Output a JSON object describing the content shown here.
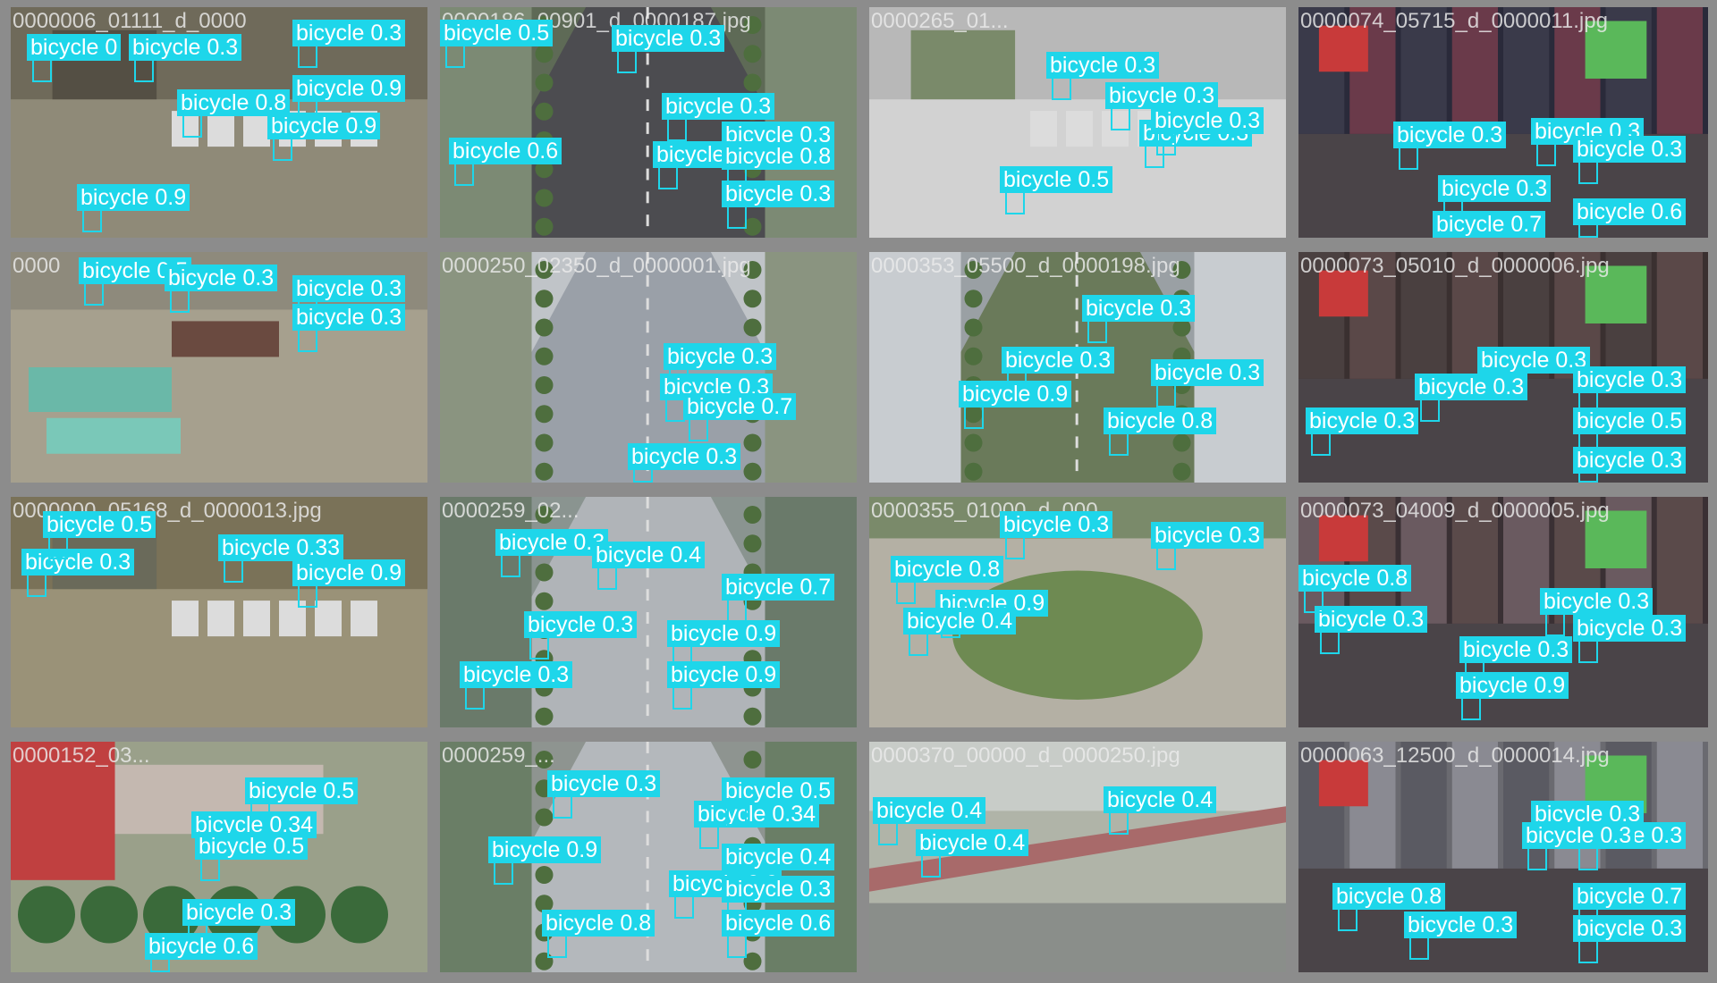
{
  "label_color": "#1ed6ea",
  "tiles": [
    {
      "filename": "0000006_01111_d_0000",
      "scene": "construction",
      "labels": [
        [
          "bicycle 0",
          18,
          30
        ],
        [
          "bicycle 0.3",
          132,
          30
        ],
        [
          "bicycle 0.3",
          320,
          14
        ],
        [
          "bicycle 0.8",
          186,
          92
        ],
        [
          "bicycle 0.9",
          381,
          76
        ],
        [
          "bicycle 0.9",
          287,
          118
        ],
        [
          "bicycle 0.9",
          74,
          198
        ]
      ]
    },
    {
      "filename": "0000186_00901_d_0000187.jpg",
      "scene": "road",
      "labels": [
        [
          "bicycle 0.5",
          0,
          14
        ],
        [
          "bicycle 0.3",
          192,
          20
        ],
        [
          "bicycle 0.3",
          248,
          96
        ],
        [
          "bicycle 0.3",
          324,
          128
        ],
        [
          "bicycle 0.6",
          10,
          146
        ],
        [
          "bicycle 0.7",
          238,
          150
        ],
        [
          "bicycle 0.8",
          390,
          152
        ],
        [
          "bicycle 0.3",
          396,
          194
        ]
      ]
    },
    {
      "filename": "0000265_01...",
      "scene": "city",
      "labels": [
        [
          "bicycle 0.3",
          198,
          50
        ],
        [
          "bicycle 0.3",
          264,
          84
        ],
        [
          "bicycle 0.3",
          302,
          126
        ],
        [
          "bicycle 0.5",
          146,
          178
        ],
        [
          "bicycle 0.3",
          360,
          112
        ]
      ]
    },
    {
      "filename": "0000074_05715_d_0000011.jpg",
      "scene": "night",
      "labels": [
        [
          "bicycle 0.3",
          106,
          128
        ],
        [
          "bicycle 0.3",
          260,
          124
        ],
        [
          "bicycle 0.3",
          388,
          144
        ],
        [
          "bicycle 0.3",
          156,
          188
        ],
        [
          "bicycle 0.6",
          338,
          214
        ],
        [
          "bicycle 0.7",
          150,
          232
        ]
      ]
    },
    {
      "filename": "0000",
      "scene": "trucks",
      "labels": [
        [
          "bicycle 0.5",
          76,
          6
        ],
        [
          "bicycle 0.3",
          172,
          14
        ],
        [
          "bicycle 0.3",
          318,
          26
        ],
        [
          "bicycle 0.3",
          432,
          58
        ]
      ]
    },
    {
      "filename": "0000250_02350_d_0000001.jpg",
      "scene": "road2",
      "labels": [
        [
          "bicycle 0.3",
          250,
          102
        ],
        [
          "bicycle 0.3",
          246,
          136
        ],
        [
          "bicycle 0.7",
          272,
          158
        ],
        [
          "bicycle 0.3",
          210,
          214
        ]
      ]
    },
    {
      "filename": "0000353_05500_d_0000198.jpg",
      "scene": "road3",
      "labels": [
        [
          "bicycle 0.3",
          238,
          48
        ],
        [
          "bicycle 0.3",
          148,
          106
        ],
        [
          "bicycle 0.9",
          100,
          144
        ],
        [
          "bicycle 0.8",
          262,
          174
        ],
        [
          "bicycle 0.3",
          336,
          120
        ]
      ]
    },
    {
      "filename": "0000073_05010_d_0000006.jpg",
      "scene": "night2",
      "labels": [
        [
          "bicycle 0.3",
          200,
          106
        ],
        [
          "bicycle 0.3",
          130,
          136
        ],
        [
          "bicycle 0.3",
          8,
          174
        ],
        [
          "bicycle 0.3",
          330,
          128
        ],
        [
          "bicycle 0.5",
          322,
          174
        ],
        [
          "bicycle 0.3",
          322,
          218
        ]
      ]
    },
    {
      "filename": "0000000_05168_d_0000013.jpg",
      "scene": "lot",
      "labels": [
        [
          "bicycle 0.3",
          12,
          58
        ],
        [
          "bicycle 0.33",
          232,
          42
        ],
        [
          "bicycle 0.9",
          398,
          70
        ],
        [
          "bicycle 0.5",
          36,
          16
        ]
      ]
    },
    {
      "filename": "0000259_02...",
      "scene": "road4",
      "labels": [
        [
          "bicycle 0.3",
          62,
          36
        ],
        [
          "bicycle 0.4",
          170,
          50
        ],
        [
          "bicycle 0.3",
          94,
          128
        ],
        [
          "bicycle 0.7",
          334,
          86
        ],
        [
          "bicycle 0.9",
          254,
          138
        ],
        [
          "bicycle 0.3",
          22,
          184
        ],
        [
          "bicycle 0.9",
          254,
          184
        ]
      ]
    },
    {
      "filename": "0000355_01000_d_000",
      "scene": "roundabout",
      "labels": [
        [
          "bicycle 0.3",
          146,
          16
        ],
        [
          "bicycle 0.8",
          24,
          66
        ],
        [
          "bicycle 0.9",
          74,
          104
        ],
        [
          "bicycle 0.4",
          38,
          124
        ],
        [
          "bicycle 0.3",
          378,
          28
        ]
      ]
    },
    {
      "filename": "0000073_04009_d_0000005.jpg",
      "scene": "night3",
      "labels": [
        [
          "bicycle 0.3",
          18,
          122
        ],
        [
          "bicycle 0.3",
          270,
          102
        ],
        [
          "bicycle 0.3",
          180,
          156
        ],
        [
          "bicycle 0.9",
          176,
          196
        ],
        [
          "bicycle 0.3",
          336,
          132
        ],
        [
          "bicycle 0.8",
          -52,
          76
        ]
      ]
    },
    {
      "filename": "0000152_03...",
      "scene": "townleft",
      "labels": [
        [
          "bicycle 0.5",
          262,
          40
        ],
        [
          "bicycle 0.34",
          202,
          78
        ],
        [
          "bicycle 0.3",
          192,
          176
        ],
        [
          "bicycle 0.6",
          150,
          214
        ],
        [
          "bicycle 0.5",
          206,
          102
        ]
      ]
    },
    {
      "filename": "0000259_...",
      "scene": "road5",
      "labels": [
        [
          "bicycle 0.3",
          120,
          32
        ],
        [
          "bicycle 0.34",
          284,
          66
        ],
        [
          "bicycle 0.9",
          54,
          106
        ],
        [
          "bicycle 0.4",
          316,
          114
        ],
        [
          "bicycle 0.9",
          256,
          144
        ],
        [
          "bicycle 0.3",
          412,
          150
        ],
        [
          "bicycle 0.8",
          114,
          188
        ],
        [
          "bicycle 0.6",
          370,
          188
        ],
        [
          "bicycle 0.5",
          354,
          40
        ]
      ]
    },
    {
      "filename": "0000370_00000_d_0000250.jpg",
      "scene": "bridge",
      "labels": [
        [
          "bicycle 0.4",
          262,
          50
        ],
        [
          "bicycle 0.4",
          52,
          98
        ],
        [
          "bicycle 0.4",
          4,
          62
        ]
      ]
    },
    {
      "filename": "0000063_12500_d_0000014.jpg",
      "scene": "night4",
      "labels": [
        [
          "bicycle 0.3",
          260,
          66
        ],
        [
          "bicycle 0.3",
          336,
          90
        ],
        [
          "bicycle 0.8",
          38,
          158
        ],
        [
          "bicycle 0.3",
          118,
          190
        ],
        [
          "bicycle 0.7",
          342,
          158
        ],
        [
          "bicycle 0.3",
          342,
          194
        ],
        [
          "bicycle 0.3",
          250,
          90
        ]
      ]
    }
  ]
}
